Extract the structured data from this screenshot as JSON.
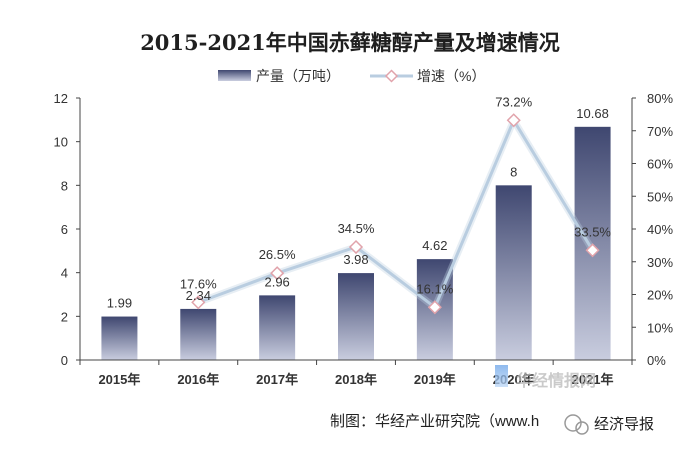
{
  "chart_data": {
    "type": "bar",
    "title": "2015-2021年中国赤藓糖醇产量及增速情况",
    "categories": [
      "2015年",
      "2016年",
      "2017年",
      "2018年",
      "2019年",
      "2020年",
      "2021年"
    ],
    "series": [
      {
        "name": "产量（万吨）",
        "type": "bar",
        "axis": "left",
        "values": [
          1.99,
          2.34,
          2.96,
          3.98,
          4.62,
          8,
          10.68
        ],
        "labels": [
          "1.99",
          "2.34",
          "2.96",
          "3.98",
          "4.62",
          "8",
          "10.68"
        ]
      },
      {
        "name": "增速（%）",
        "type": "line",
        "axis": "right",
        "values": [
          null,
          17.6,
          26.5,
          34.5,
          16.1,
          73.2,
          33.5
        ],
        "labels": [
          "",
          "17.6%",
          "26.5%",
          "34.5%",
          "16.1%",
          "73.2%",
          "33.5%"
        ]
      }
    ],
    "y_left": {
      "min": 0,
      "max": 12,
      "ticks": [
        "0",
        "2",
        "4",
        "6",
        "8",
        "10",
        "12"
      ]
    },
    "y_right": {
      "min": 0,
      "max": 80,
      "ticks": [
        "0%",
        "10%",
        "20%",
        "30%",
        "40%",
        "50%",
        "60%",
        "70%",
        "80%"
      ]
    },
    "legend_position": "top-center",
    "grid": false,
    "colors": {
      "bar_top": "#3f4770",
      "bar_bottom": "#c9cddf",
      "line": "#b9cde0",
      "marker_stroke": "#e1a3ab"
    }
  },
  "source": "制图：华经产业研究院（www.h",
  "watermark": {
    "site": "华经情报网",
    "account": "经济导报"
  }
}
